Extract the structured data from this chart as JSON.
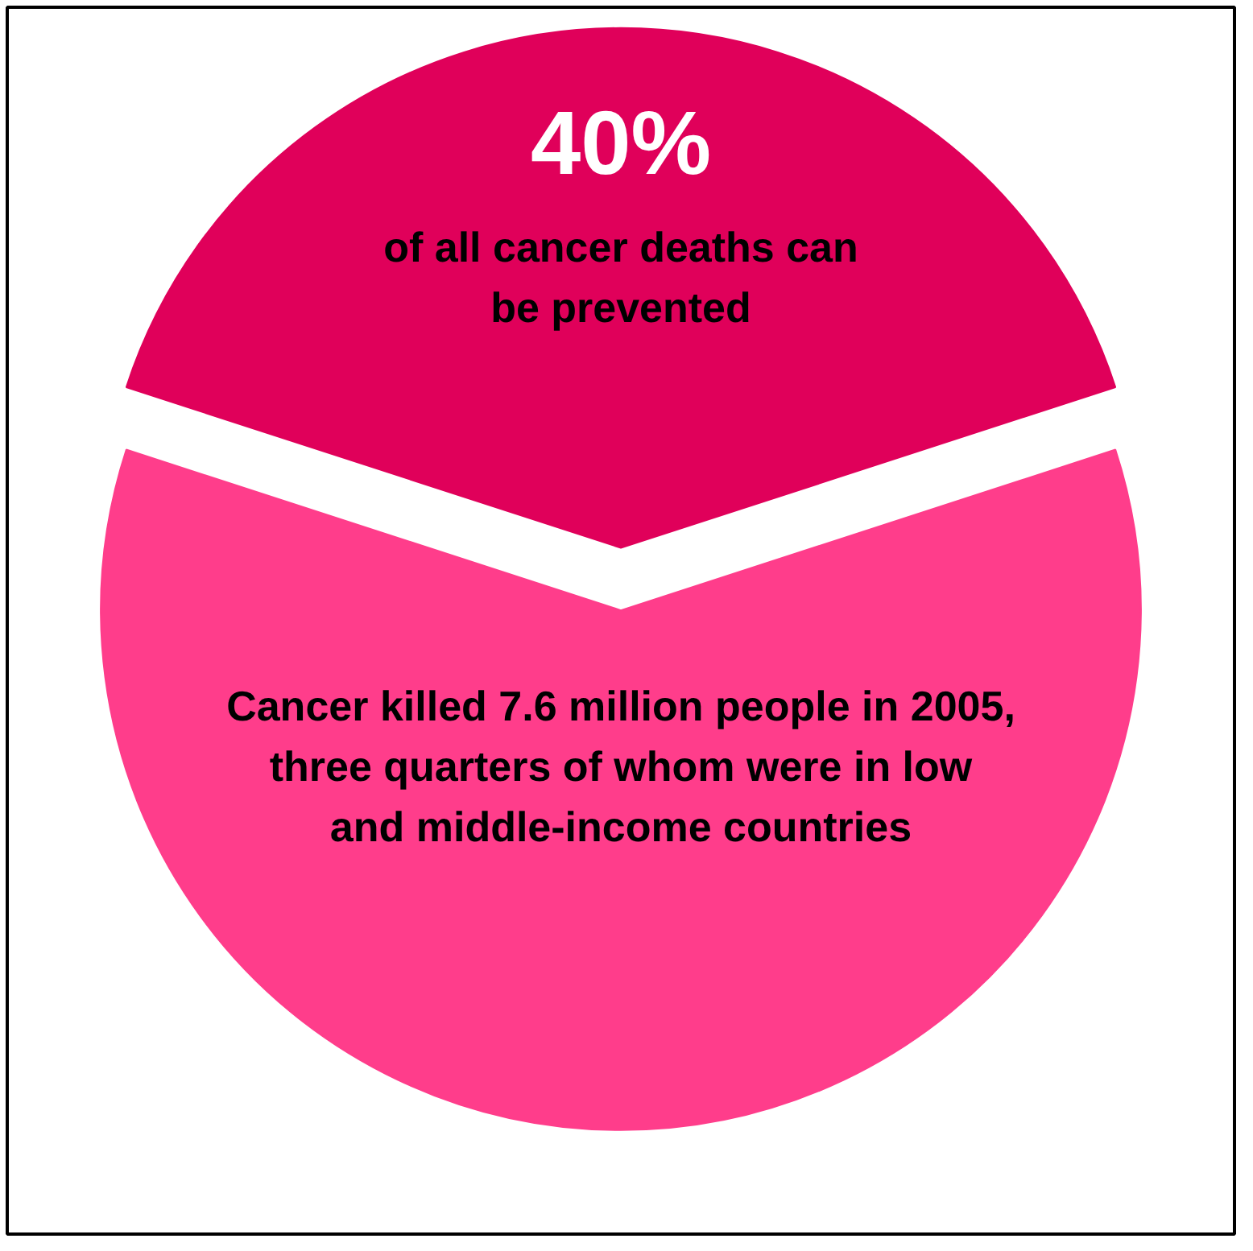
{
  "chart_data": {
    "type": "pie",
    "categories": [
      "of all cancer deaths can\nbe prevented",
      "Cancer killed 7.6 million people in 2005,\nthree quarters of whom were in low\nand middle-income countries"
    ],
    "values": [
      40,
      60
    ],
    "colors": [
      "#e0005a",
      "#ff3d8b"
    ],
    "value_labels": [
      "40%",
      null
    ]
  }
}
